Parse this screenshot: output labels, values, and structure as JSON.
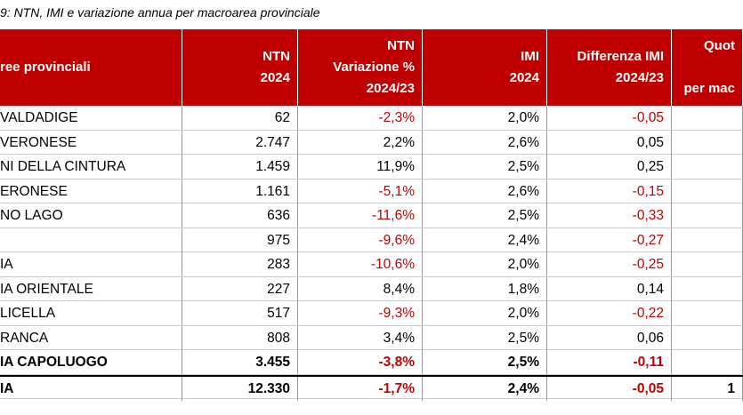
{
  "caption": "9: NTN, IMI e variazione annua per macroarea provinciale",
  "table": {
    "header": [
      [
        "ree provinciali"
      ],
      [
        "NTN",
        "2024"
      ],
      [
        "NTN",
        "Variazione %",
        "2024/23"
      ],
      [
        "IMI",
        "2024"
      ],
      [
        "Differenza IMI",
        "2024/23"
      ],
      [
        "Quot",
        "",
        "per mac"
      ]
    ],
    "rows": [
      {
        "name": "VALDADIGE",
        "ntn": "62",
        "var": "-2,3%",
        "imi": "2,0%",
        "diff": "-0,05"
      },
      {
        "name": "VERONESE",
        "ntn": "2.747",
        "var": "2,2%",
        "imi": "2,6%",
        "diff": "0,05"
      },
      {
        "name": "NI DELLA CINTURA",
        "ntn": "1.459",
        "var": "11,9%",
        "imi": "2,5%",
        "diff": "0,25"
      },
      {
        "name": "ERONESE",
        "ntn": "1.161",
        "var": "-5,1%",
        "imi": "2,6%",
        "diff": "-0,15"
      },
      {
        "name": "NO LAGO",
        "ntn": "636",
        "var": "-11,6%",
        "imi": "2,5%",
        "diff": "-0,33"
      },
      {
        "ntn": "975",
        "var": "-9,6%",
        "imi": "2,4%",
        "diff": "-0,27"
      },
      {
        "name": "IA",
        "ntn": "283",
        "var": "-10,6%",
        "imi": "2,0%",
        "diff": "-0,25"
      },
      {
        "name": "IA ORIENTALE",
        "ntn": "227",
        "var": "8,4%",
        "imi": "1,8%",
        "diff": "0,14"
      },
      {
        "name": "LICELLA",
        "ntn": "517",
        "var": "-9,3%",
        "imi": "2,0%",
        "diff": "-0,22"
      },
      {
        "name": "RANCA",
        "ntn": "808",
        "var": "3,4%",
        "imi": "2,5%",
        "diff": "0,06"
      },
      {
        "name": "IA CAPOLUOGO",
        "ntn": "3.455",
        "var": "-3,8%",
        "imi": "2,5%",
        "diff": "-0,11",
        "bold": true
      },
      {
        "name": "IA",
        "ntn": "12.330",
        "var": "-1,7%",
        "imi": "2,4%",
        "diff": "-0,05",
        "quota": "1",
        "bold": true,
        "total": true
      }
    ]
  }
}
